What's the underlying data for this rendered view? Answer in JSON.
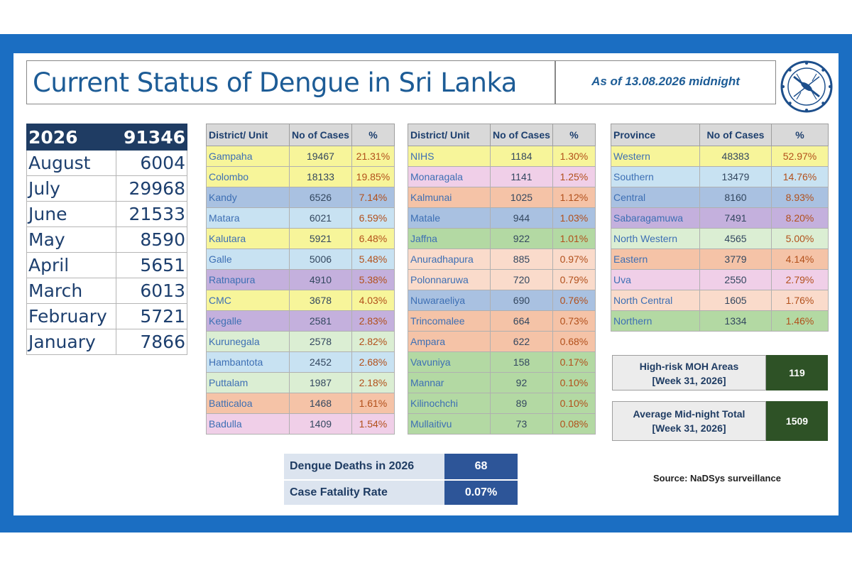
{
  "title": "Current Status of Dengue in Sri Lanka",
  "as_of": "As of 13.08.2026 midnight",
  "yearly": {
    "year": "2026",
    "total": "91346",
    "months": [
      {
        "month": "August",
        "value": "6004"
      },
      {
        "month": "July",
        "value": "29968"
      },
      {
        "month": "June",
        "value": "21533"
      },
      {
        "month": "May",
        "value": "8590"
      },
      {
        "month": "April",
        "value": "5651"
      },
      {
        "month": "March",
        "value": "6013"
      },
      {
        "month": "February",
        "value": "5721"
      },
      {
        "month": "January",
        "value": "7866"
      }
    ]
  },
  "district_table_1": {
    "headers": [
      "District/ Unit",
      "No of Cases",
      "%"
    ],
    "rows": [
      {
        "name": "Gampaha",
        "cases": "19467",
        "pct": "21.31%",
        "color": "#f7f59a"
      },
      {
        "name": "Colombo",
        "cases": "18133",
        "pct": "19.85%",
        "color": "#f7f59a"
      },
      {
        "name": "Kandy",
        "cases": "6526",
        "pct": "7.14%",
        "color": "#a9c1e1"
      },
      {
        "name": "Matara",
        "cases": "6021",
        "pct": "6.59%",
        "color": "#c8e2f2"
      },
      {
        "name": "Kalutara",
        "cases": "5921",
        "pct": "6.48%",
        "color": "#f7f59a"
      },
      {
        "name": "Galle",
        "cases": "5006",
        "pct": "5.48%",
        "color": "#c8e2f2"
      },
      {
        "name": "Ratnapura",
        "cases": "4910",
        "pct": "5.38%",
        "color": "#c4b0dd"
      },
      {
        "name": "CMC",
        "cases": "3678",
        "pct": "4.03%",
        "color": "#f7f59a"
      },
      {
        "name": "Kegalle",
        "cases": "2581",
        "pct": "2.83%",
        "color": "#c4b0dd"
      },
      {
        "name": "Kurunegala",
        "cases": "2578",
        "pct": "2.82%",
        "color": "#dbeed3"
      },
      {
        "name": "Hambantota",
        "cases": "2452",
        "pct": "2.68%",
        "color": "#c8e2f2"
      },
      {
        "name": "Puttalam",
        "cases": "1987",
        "pct": "2.18%",
        "color": "#dbeed3"
      },
      {
        "name": "Batticaloa",
        "cases": "1468",
        "pct": "1.61%",
        "color": "#f5c3a7"
      },
      {
        "name": "Badulla",
        "cases": "1409",
        "pct": "1.54%",
        "color": "#f0cfe8"
      }
    ]
  },
  "district_table_2": {
    "headers": [
      "District/ Unit",
      "No of Cases",
      "%"
    ],
    "rows": [
      {
        "name": "NIHS",
        "cases": "1184",
        "pct": "1.30%",
        "color": "#f7f59a"
      },
      {
        "name": "Monaragala",
        "cases": "1141",
        "pct": "1.25%",
        "color": "#f0cfe8"
      },
      {
        "name": "Kalmunai",
        "cases": "1025",
        "pct": "1.12%",
        "color": "#f5c3a7"
      },
      {
        "name": "Matale",
        "cases": "944",
        "pct": "1.03%",
        "color": "#a9c1e1"
      },
      {
        "name": "Jaffna",
        "cases": "922",
        "pct": "1.01%",
        "color": "#b3d9a3"
      },
      {
        "name": "Anuradhapura",
        "cases": "885",
        "pct": "0.97%",
        "color": "#fadbcb"
      },
      {
        "name": "Polonnaruwa",
        "cases": "720",
        "pct": "0.79%",
        "color": "#fadbcb"
      },
      {
        "name": "Nuwaraeliya",
        "cases": "690",
        "pct": "0.76%",
        "color": "#a9c1e1"
      },
      {
        "name": "Trincomalee",
        "cases": "664",
        "pct": "0.73%",
        "color": "#f5c3a7"
      },
      {
        "name": "Ampara",
        "cases": "622",
        "pct": "0.68%",
        "color": "#f5c3a7"
      },
      {
        "name": "Vavuniya",
        "cases": "158",
        "pct": "0.17%",
        "color": "#b3d9a3"
      },
      {
        "name": "Mannar",
        "cases": "92",
        "pct": "0.10%",
        "color": "#b3d9a3"
      },
      {
        "name": "Kilinochchi",
        "cases": "89",
        "pct": "0.10%",
        "color": "#b3d9a3"
      },
      {
        "name": "Mullaitivu",
        "cases": "73",
        "pct": "0.08%",
        "color": "#b3d9a3"
      }
    ]
  },
  "province_table": {
    "headers": [
      "Province",
      "No of Cases",
      "%"
    ],
    "rows": [
      {
        "name": "Western",
        "cases": "48383",
        "pct": "52.97%",
        "color": "#f7f59a"
      },
      {
        "name": "Southern",
        "cases": "13479",
        "pct": "14.76%",
        "color": "#c8e2f2"
      },
      {
        "name": "Central",
        "cases": "8160",
        "pct": "8.93%",
        "color": "#a9c1e1"
      },
      {
        "name": "Sabaragamuwa",
        "cases": "7491",
        "pct": "8.20%",
        "color": "#c4b0dd"
      },
      {
        "name": "North Western",
        "cases": "4565",
        "pct": "5.00%",
        "color": "#dbeed3"
      },
      {
        "name": "Eastern",
        "cases": "3779",
        "pct": "4.14%",
        "color": "#f5c3a7"
      },
      {
        "name": "Uva",
        "cases": "2550",
        "pct": "2.79%",
        "color": "#f0cfe8"
      },
      {
        "name": "North Central",
        "cases": "1605",
        "pct": "1.76%",
        "color": "#fadbcb"
      },
      {
        "name": "Northern",
        "cases": "1334",
        "pct": "1.46%",
        "color": "#b3d9a3"
      }
    ]
  },
  "high_risk": {
    "label_line1": "High-risk MOH Areas",
    "label_line2": "[Week 31, 2026]",
    "value": "119"
  },
  "midnight": {
    "label_line1": "Average Mid-night Total",
    "label_line2": "[Week 31, 2026]",
    "value": "1509"
  },
  "deaths": {
    "label": "Dengue Deaths in 2026",
    "value": "68"
  },
  "cfr": {
    "label": "Case Fatality Rate",
    "value": "0.07%"
  },
  "source": "Source: NaDSys surveillance",
  "colors": {
    "frame": "#1b6ec2",
    "title_text": "#1d5c96",
    "header_dark": "#1f3c63",
    "info_value": "#2e5226",
    "death_value": "#2d5598"
  }
}
